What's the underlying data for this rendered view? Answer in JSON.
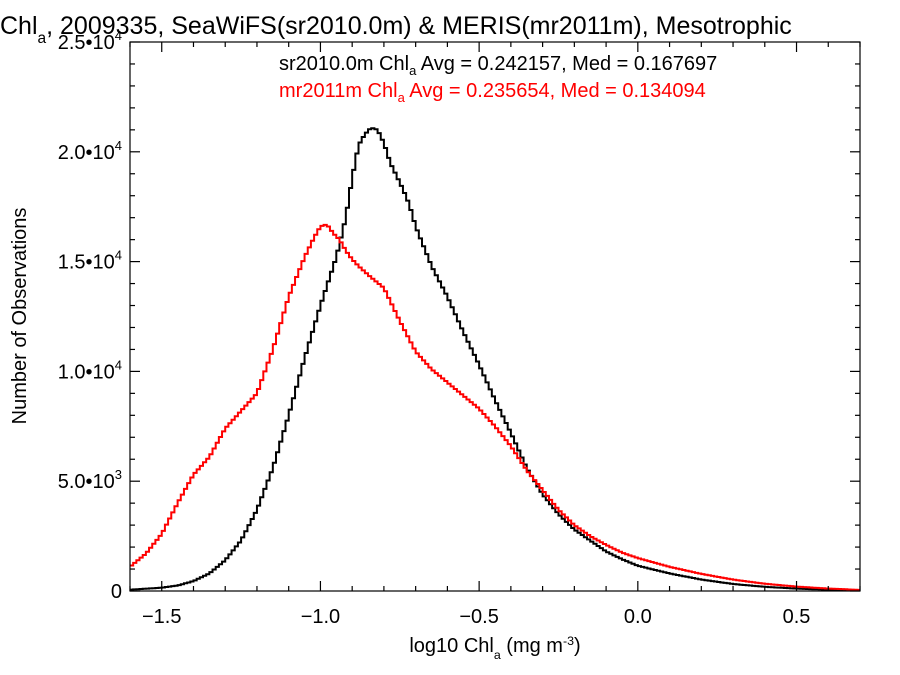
{
  "chart_data": {
    "type": "line",
    "title": {
      "parts": [
        {
          "t": "Chl"
        },
        {
          "t": "a",
          "sub": true
        },
        {
          "t": ", 2009335, SeaWiFS(sr2010.0m) & MERIS(mr2011m), Mesotrophic"
        }
      ]
    },
    "xlabel": {
      "parts": [
        {
          "t": "log10 Chl"
        },
        {
          "t": "a",
          "sub": true
        },
        {
          "t": " (mg m"
        },
        {
          "t": "-3",
          "sup": true
        },
        {
          "t": ")"
        }
      ]
    },
    "ylabel": "Number of Observations",
    "xlim": [
      -1.6,
      0.7
    ],
    "ylim": [
      0,
      25000
    ],
    "xticks": [
      {
        "value": -1.5,
        "label": "−1.5"
      },
      {
        "value": -1.0,
        "label": "−1.0"
      },
      {
        "value": -0.5,
        "label": "−0.5"
      },
      {
        "value": 0.0,
        "label": "0.0"
      },
      {
        "value": 0.5,
        "label": "0.5"
      }
    ],
    "yticks": [
      {
        "value": 0,
        "mant": "0",
        "exp": ""
      },
      {
        "value": 5000,
        "mant": "5.0•10",
        "exp": "3"
      },
      {
        "value": 10000,
        "mant": "1.0•10",
        "exp": "4"
      },
      {
        "value": 15000,
        "mant": "1.5•10",
        "exp": "4"
      },
      {
        "value": 20000,
        "mant": "2.0•10",
        "exp": "4"
      },
      {
        "value": 25000,
        "mant": "2.5•10",
        "exp": "4"
      }
    ],
    "grid": false,
    "series": [
      {
        "name": "sr2010.0m",
        "color": "#000000",
        "legend": {
          "pre": "sr2010.0m Chl",
          "sub": "a",
          "post": " Avg = 0.242157, Med = 0.167697"
        },
        "x": [
          -1.6,
          -1.5,
          -1.45,
          -1.4,
          -1.35,
          -1.3,
          -1.25,
          -1.2,
          -1.15,
          -1.1,
          -1.05,
          -1.0,
          -0.95,
          -0.92,
          -0.9,
          -0.88,
          -0.86,
          -0.84,
          -0.82,
          -0.8,
          -0.78,
          -0.76,
          -0.74,
          -0.72,
          -0.7,
          -0.65,
          -0.6,
          -0.55,
          -0.5,
          -0.45,
          -0.4,
          -0.35,
          -0.3,
          -0.25,
          -0.2,
          -0.15,
          -0.1,
          -0.05,
          0.0,
          0.1,
          0.2,
          0.3,
          0.4,
          0.5,
          0.6,
          0.7
        ],
        "y": [
          60,
          150,
          250,
          450,
          800,
          1400,
          2300,
          3700,
          5600,
          8000,
          10600,
          13000,
          15200,
          17000,
          18800,
          20300,
          20800,
          21100,
          21000,
          20400,
          19500,
          18900,
          18300,
          17600,
          16600,
          14800,
          13400,
          11800,
          10300,
          8700,
          7200,
          5600,
          4400,
          3500,
          2800,
          2300,
          1800,
          1450,
          1150,
          800,
          520,
          320,
          190,
          110,
          60,
          30
        ]
      },
      {
        "name": "mr2011m",
        "color": "#ff0000",
        "legend": {
          "pre": "mr2011m Chl",
          "sub": "a",
          "post": " Avg = 0.235654, Med = 0.134094"
        },
        "x": [
          -1.6,
          -1.55,
          -1.5,
          -1.45,
          -1.4,
          -1.35,
          -1.3,
          -1.25,
          -1.2,
          -1.15,
          -1.1,
          -1.05,
          -1.02,
          -1.0,
          -0.98,
          -0.96,
          -0.94,
          -0.92,
          -0.9,
          -0.88,
          -0.85,
          -0.8,
          -0.75,
          -0.7,
          -0.65,
          -0.6,
          -0.55,
          -0.5,
          -0.45,
          -0.4,
          -0.35,
          -0.3,
          -0.25,
          -0.2,
          -0.15,
          -0.1,
          -0.05,
          0.0,
          0.1,
          0.2,
          0.3,
          0.4,
          0.5,
          0.6,
          0.7
        ],
        "y": [
          1100,
          1700,
          2600,
          4000,
          5300,
          6100,
          7400,
          8200,
          9000,
          11000,
          13400,
          15200,
          16100,
          16600,
          16700,
          16300,
          16000,
          15500,
          15100,
          14800,
          14400,
          13800,
          12300,
          10900,
          10100,
          9500,
          8900,
          8300,
          7500,
          6600,
          5500,
          4600,
          3700,
          3000,
          2500,
          2100,
          1750,
          1500,
          1100,
          780,
          520,
          330,
          200,
          110,
          50
        ]
      }
    ]
  }
}
